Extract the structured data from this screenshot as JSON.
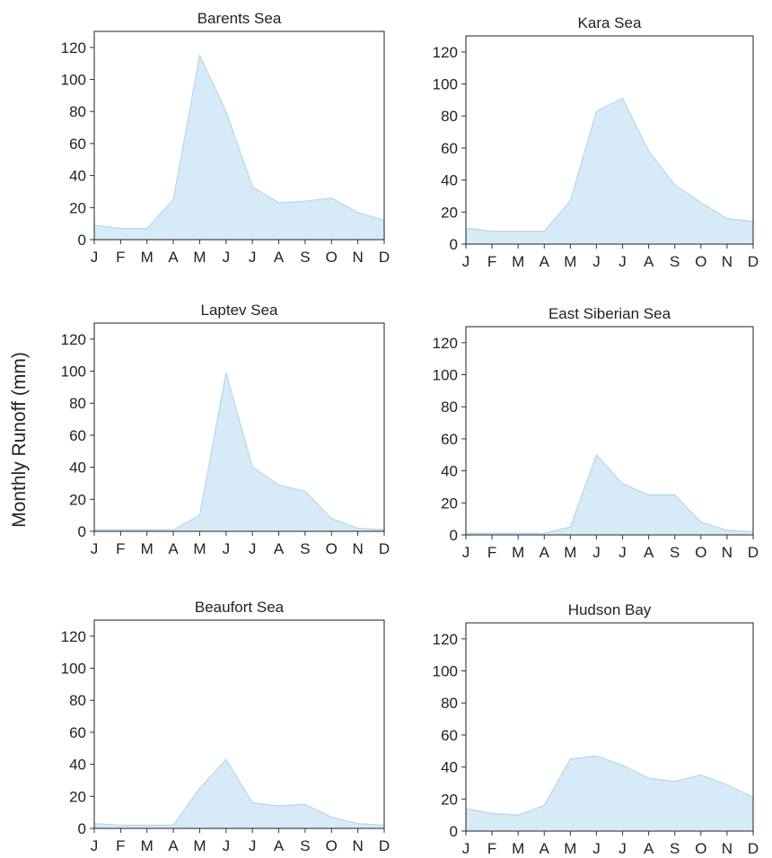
{
  "figure": {
    "ylabel": "Monthly Runoff (mm)"
  },
  "style": {
    "fill_color": "#d6eaf8",
    "line_color": "#b9d6ea",
    "axis_color": "#333333"
  },
  "chart_data": [
    {
      "type": "area",
      "title": "Barents Sea",
      "categories": [
        "J",
        "F",
        "M",
        "A",
        "M",
        "J",
        "J",
        "A",
        "S",
        "O",
        "N",
        "D"
      ],
      "values": [
        9,
        7,
        7,
        25,
        115,
        80,
        33,
        23,
        24,
        26,
        17,
        12
      ],
      "ylim": [
        0,
        130
      ],
      "yticks": [
        0,
        20,
        40,
        60,
        80,
        100,
        120
      ]
    },
    {
      "type": "area",
      "title": "Kara Sea",
      "categories": [
        "J",
        "F",
        "M",
        "A",
        "M",
        "J",
        "J",
        "A",
        "S",
        "O",
        "N",
        "D"
      ],
      "values": [
        10,
        8,
        8,
        8,
        27,
        83,
        91,
        58,
        37,
        26,
        16,
        14
      ],
      "ylim": [
        0,
        130
      ],
      "yticks": [
        0,
        20,
        40,
        60,
        80,
        100,
        120
      ]
    },
    {
      "type": "area",
      "title": "Laptev Sea",
      "categories": [
        "J",
        "F",
        "M",
        "A",
        "M",
        "J",
        "J",
        "A",
        "S",
        "O",
        "N",
        "D"
      ],
      "values": [
        1,
        1,
        1,
        1,
        10,
        99,
        40,
        29,
        25,
        8,
        2,
        1
      ],
      "ylim": [
        0,
        130
      ],
      "yticks": [
        0,
        20,
        40,
        60,
        80,
        100,
        120
      ]
    },
    {
      "type": "area",
      "title": "East Siberian Sea",
      "categories": [
        "J",
        "F",
        "M",
        "A",
        "M",
        "J",
        "J",
        "A",
        "S",
        "O",
        "N",
        "D"
      ],
      "values": [
        1,
        1,
        1,
        1,
        5,
        50,
        32,
        25,
        25,
        8,
        3,
        2
      ],
      "ylim": [
        0,
        130
      ],
      "yticks": [
        0,
        20,
        40,
        60,
        80,
        100,
        120
      ]
    },
    {
      "type": "area",
      "title": "Beaufort Sea",
      "categories": [
        "J",
        "F",
        "M",
        "A",
        "M",
        "J",
        "J",
        "A",
        "S",
        "O",
        "N",
        "D"
      ],
      "values": [
        3,
        2,
        2,
        2,
        25,
        43,
        16,
        14,
        15,
        7,
        3,
        2
      ],
      "ylim": [
        0,
        130
      ],
      "yticks": [
        0,
        20,
        40,
        60,
        80,
        100,
        120
      ]
    },
    {
      "type": "area",
      "title": "Hudson Bay",
      "categories": [
        "J",
        "F",
        "M",
        "A",
        "M",
        "J",
        "J",
        "A",
        "S",
        "O",
        "N",
        "D"
      ],
      "values": [
        14,
        11,
        10,
        16,
        45,
        47,
        41,
        33,
        31,
        35,
        29,
        21
      ],
      "ylim": [
        0,
        130
      ],
      "yticks": [
        0,
        20,
        40,
        60,
        80,
        100,
        120
      ]
    }
  ]
}
